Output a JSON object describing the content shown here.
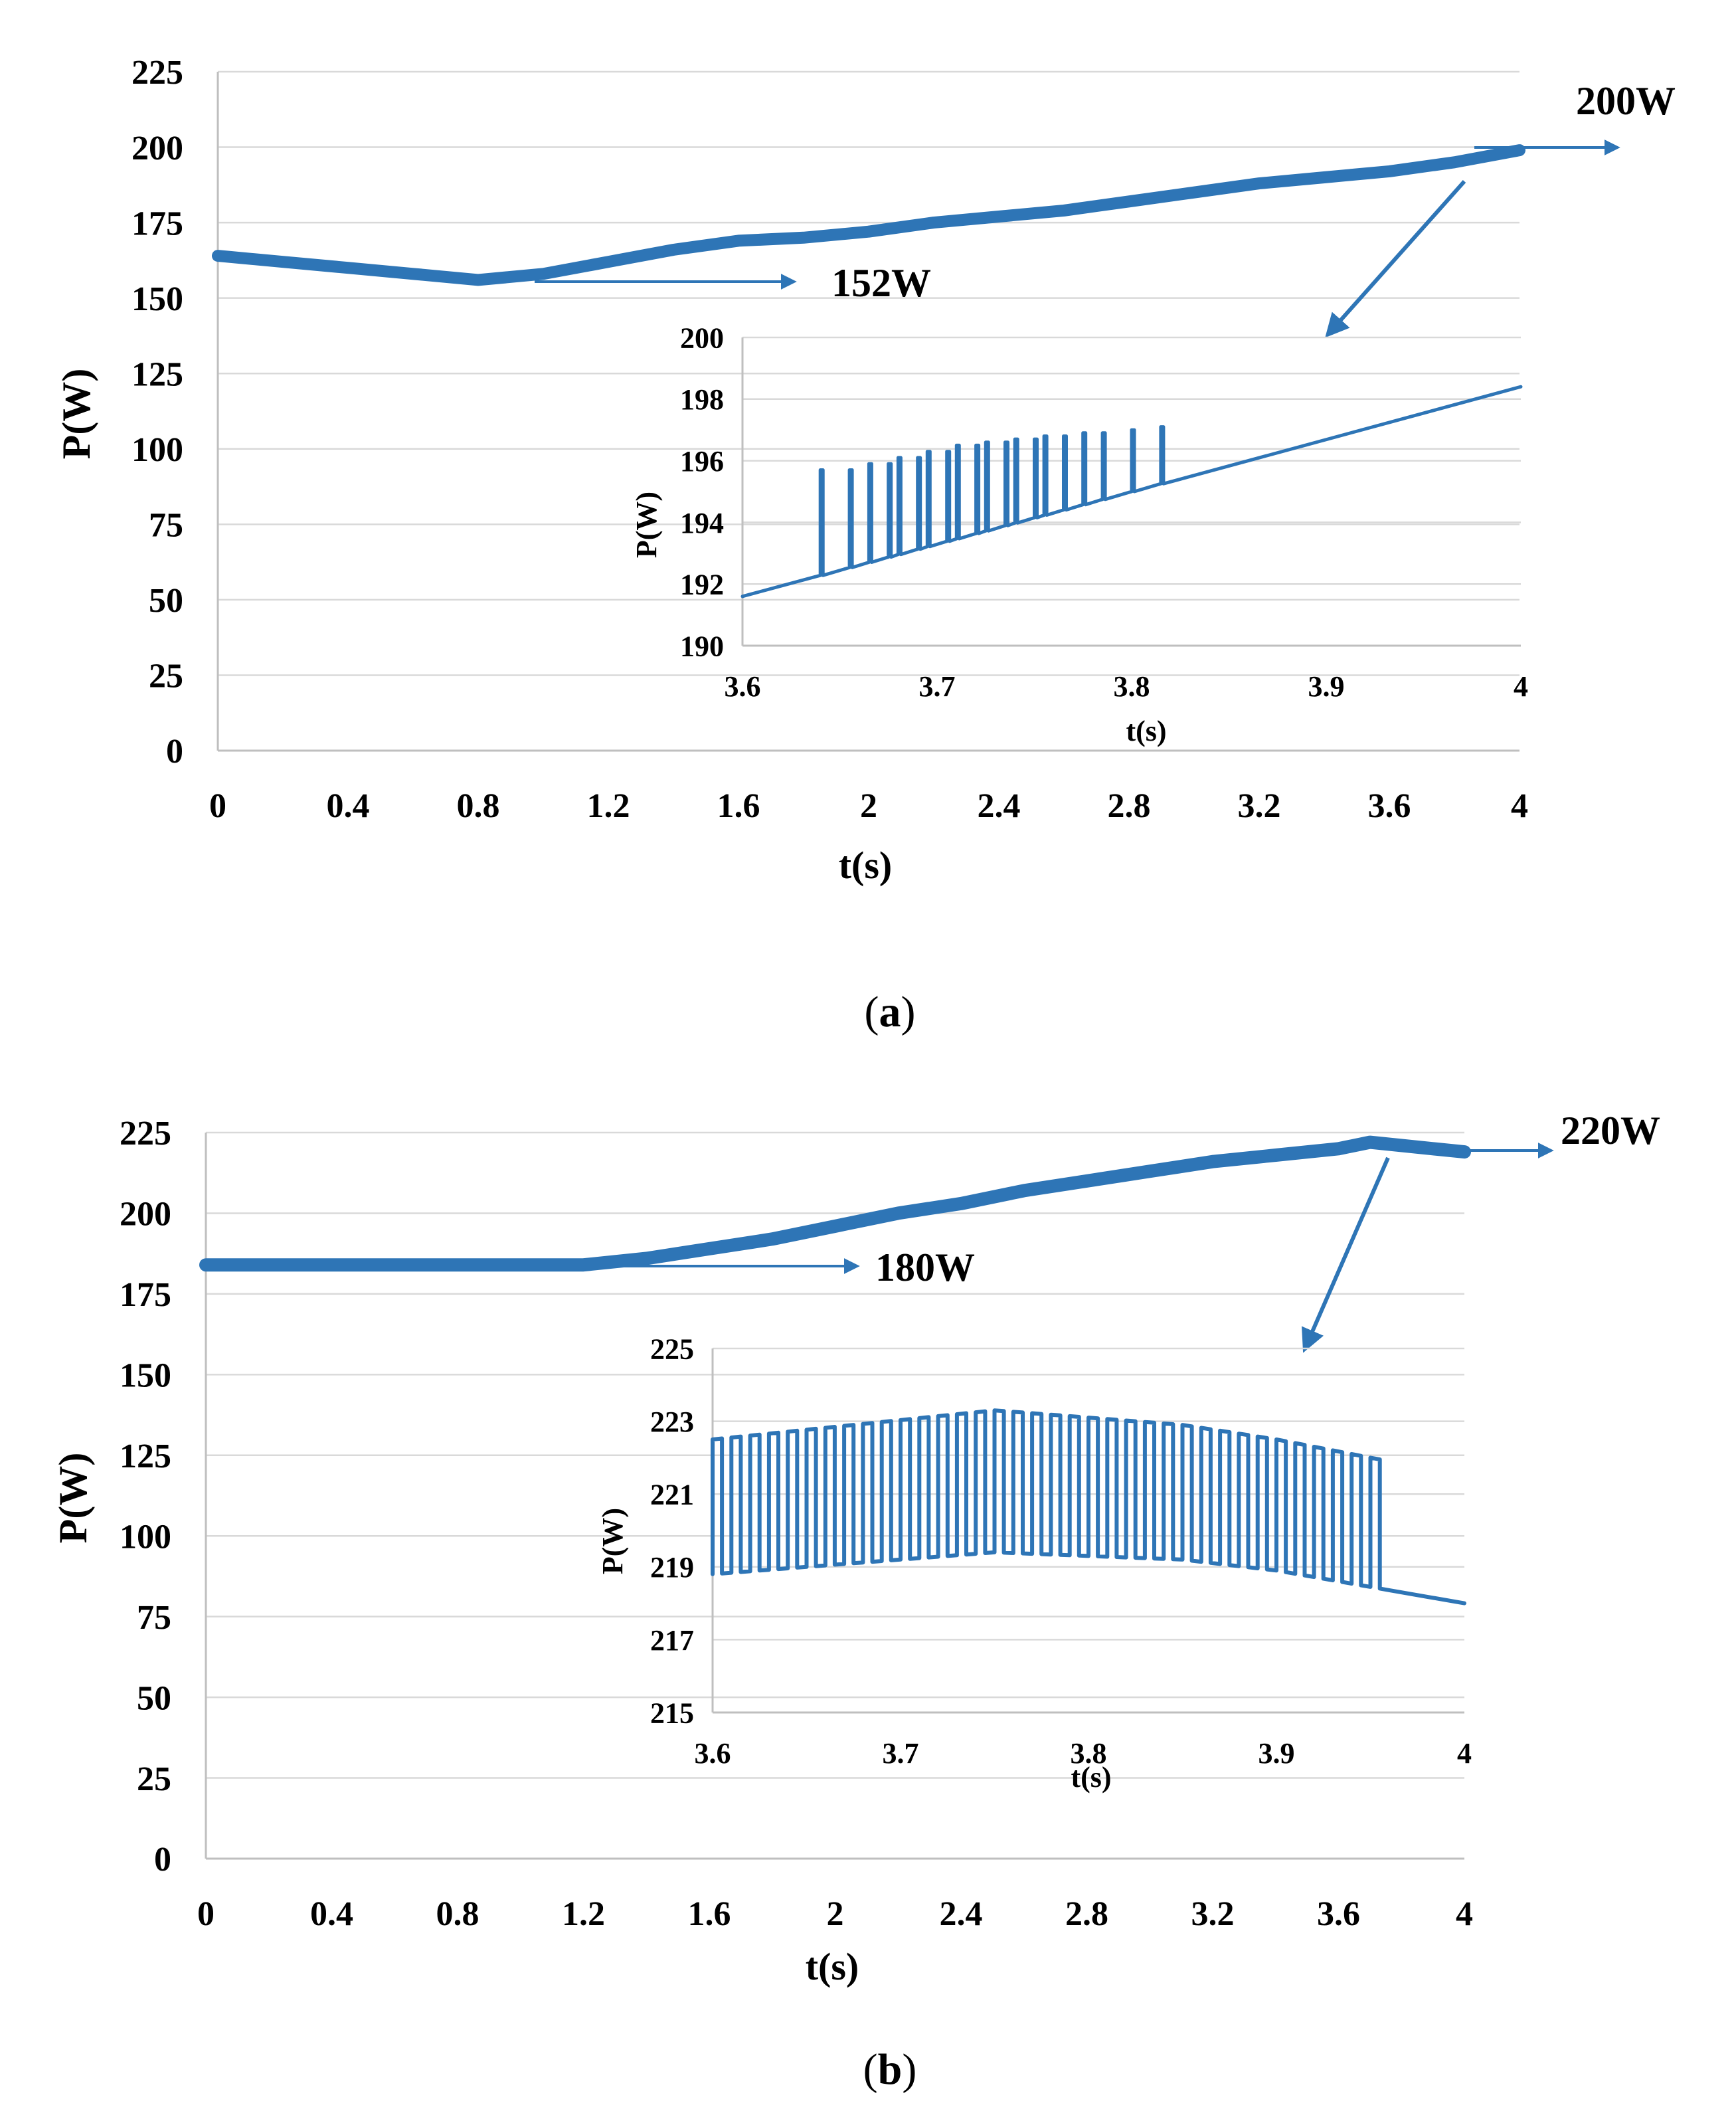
{
  "chart_data": [
    {
      "id": "a",
      "type": "line",
      "caption_letter": "a",
      "title": "",
      "xlabel": "t(s)",
      "ylabel": "P(W)",
      "xlim": [
        0,
        4
      ],
      "ylim": [
        0,
        225
      ],
      "xticks": [
        "0",
        "0.4",
        "0.8",
        "1.2",
        "1.6",
        "2",
        "2.4",
        "2.8",
        "3.2",
        "3.6",
        "4"
      ],
      "yticks": [
        "0",
        "25",
        "50",
        "75",
        "100",
        "125",
        "150",
        "175",
        "200",
        "225"
      ],
      "series": [
        {
          "name": "P",
          "color": "#2e75b6",
          "x": [
            0,
            0.2,
            0.4,
            0.6,
            0.8,
            1.0,
            1.2,
            1.4,
            1.6,
            1.8,
            2.0,
            2.2,
            2.4,
            2.6,
            2.8,
            3.0,
            3.2,
            3.4,
            3.6,
            3.8,
            4.0
          ],
          "y": [
            164,
            162,
            160,
            158,
            156,
            158,
            162,
            166,
            169,
            170,
            172,
            175,
            177,
            179,
            182,
            185,
            188,
            190,
            192,
            195,
            199
          ]
        }
      ],
      "annotations": [
        {
          "text": "200W",
          "x": 4.0,
          "y": 199
        },
        {
          "text": "152W",
          "x": 0.9,
          "y": 156
        }
      ],
      "inset": {
        "xlabel": "t(s)",
        "ylabel": "P(W)",
        "xlim": [
          3.6,
          4
        ],
        "ylim": [
          190,
          200
        ],
        "xticks": [
          "3.6",
          "3.7",
          "3.8",
          "3.9",
          "4"
        ],
        "yticks": [
          "190",
          "192",
          "194",
          "196",
          "198",
          "200"
        ],
        "series": [
          {
            "name": "P",
            "color": "#2e75b6",
            "baseline": [
              [
                3.6,
                191.6
              ],
              [
                4.0,
                198.4
              ]
            ],
            "spikes": [
              [
                3.64,
                195.7
              ],
              [
                3.655,
                195.7
              ],
              [
                3.665,
                195.9
              ],
              [
                3.675,
                195.9
              ],
              [
                3.68,
                196.1
              ],
              [
                3.69,
                196.1
              ],
              [
                3.695,
                196.3
              ],
              [
                3.705,
                196.3
              ],
              [
                3.71,
                196.5
              ],
              [
                3.72,
                196.5
              ],
              [
                3.725,
                196.6
              ],
              [
                3.735,
                196.6
              ],
              [
                3.74,
                196.7
              ],
              [
                3.75,
                196.7
              ],
              [
                3.755,
                196.8
              ],
              [
                3.765,
                196.8
              ],
              [
                3.775,
                196.9
              ],
              [
                3.785,
                196.9
              ],
              [
                3.8,
                197.0
              ],
              [
                3.815,
                197.1
              ]
            ]
          }
        ]
      }
    },
    {
      "id": "b",
      "type": "line",
      "caption_letter": "b",
      "title": "",
      "xlabel": "t(s)",
      "ylabel": "P(W)",
      "xlim": [
        0,
        4
      ],
      "ylim": [
        0,
        225
      ],
      "xticks": [
        "0",
        "0.4",
        "0.8",
        "1.2",
        "1.6",
        "2",
        "2.4",
        "2.8",
        "3.2",
        "3.6",
        "4"
      ],
      "yticks": [
        "0",
        "25",
        "50",
        "75",
        "100",
        "125",
        "150",
        "175",
        "200",
        "225"
      ],
      "series": [
        {
          "name": "P",
          "color": "#2e75b6",
          "x": [
            0,
            0.4,
            0.8,
            1.2,
            1.4,
            1.6,
            1.8,
            2.0,
            2.2,
            2.4,
            2.6,
            2.8,
            3.0,
            3.2,
            3.4,
            3.6,
            3.7,
            3.8,
            3.9,
            4.0
          ],
          "y": [
            184,
            184,
            184,
            184,
            186,
            189,
            192,
            196,
            200,
            203,
            207,
            210,
            213,
            216,
            218,
            220,
            222,
            221,
            220,
            219
          ]
        }
      ],
      "annotations": [
        {
          "text": "220W",
          "x": 4.0,
          "y": 219
        },
        {
          "text": "180W",
          "x": 1.2,
          "y": 184
        }
      ],
      "inset": {
        "xlabel": "t(s)",
        "ylabel": "P(W)",
        "xlim": [
          3.6,
          4
        ],
        "ylim": [
          215,
          225
        ],
        "xticks": [
          "3.6",
          "3.7",
          "3.8",
          "3.9",
          "4"
        ],
        "yticks": [
          "215",
          "217",
          "219",
          "221",
          "223",
          "225"
        ],
        "series": [
          {
            "name": "P",
            "color": "#2e75b6",
            "low": [
              [
                3.6,
                218.8
              ],
              [
                3.75,
                219.4
              ],
              [
                3.85,
                219.2
              ],
              [
                3.9,
                218.9
              ],
              [
                4.0,
                218.0
              ]
            ],
            "high": [
              [
                3.6,
                222.5
              ],
              [
                3.75,
                223.3
              ],
              [
                3.85,
                222.9
              ],
              [
                3.9,
                222.5
              ],
              [
                4.0,
                221.5
              ]
            ],
            "pulse_start": 3.6,
            "pulse_end": 3.96,
            "pulse_count": 36
          }
        ]
      }
    }
  ]
}
